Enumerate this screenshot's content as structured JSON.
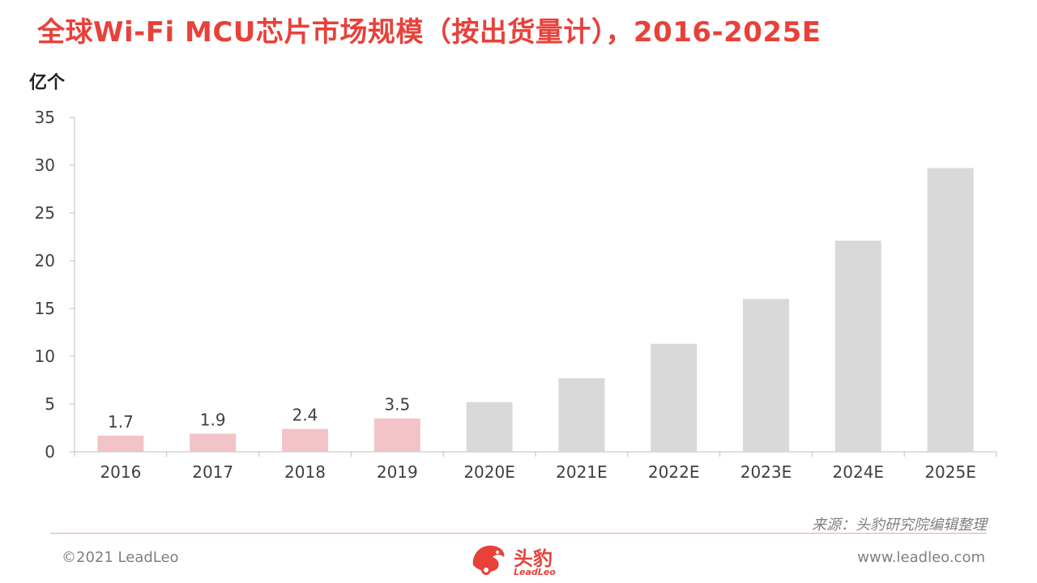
{
  "header": {
    "title": "全球Wi-Fi MCU芯片市场规模（按出货量计），2016-2025E",
    "unit": "亿个"
  },
  "chart_data": {
    "type": "bar",
    "categories": [
      "2016",
      "2017",
      "2018",
      "2019",
      "2020E",
      "2021E",
      "2022E",
      "2023E",
      "2024E",
      "2025E"
    ],
    "values": [
      1.7,
      1.9,
      2.4,
      3.5,
      5.2,
      7.7,
      11.3,
      16.0,
      22.1,
      29.7
    ],
    "data_labels": [
      "1.7",
      "1.9",
      "2.4",
      "3.5",
      "",
      "",
      "",
      "",
      "",
      ""
    ],
    "bar_colors": [
      "#f2c4c7",
      "#f2c4c7",
      "#f2c4c7",
      "#f2c4c7",
      "#d9d9d9",
      "#d9d9d9",
      "#d9d9d9",
      "#d9d9d9",
      "#d9d9d9",
      "#d9d9d9"
    ],
    "ylim": [
      0,
      35
    ],
    "yticks": [
      0,
      5,
      10,
      15,
      20,
      25,
      30,
      35
    ],
    "ylabel": "亿个",
    "grid": false
  },
  "footer": {
    "source": "来源：头豹研究院编辑整理",
    "copyright": "©2021 LeadLeo",
    "website": "www.leadleo.com",
    "logo_text": "头豹",
    "logo_sub": "LeadLeo"
  },
  "colors": {
    "accent": "#e8413a",
    "actual_bar": "#f2c4c7",
    "forecast_bar": "#d9d9d9"
  }
}
